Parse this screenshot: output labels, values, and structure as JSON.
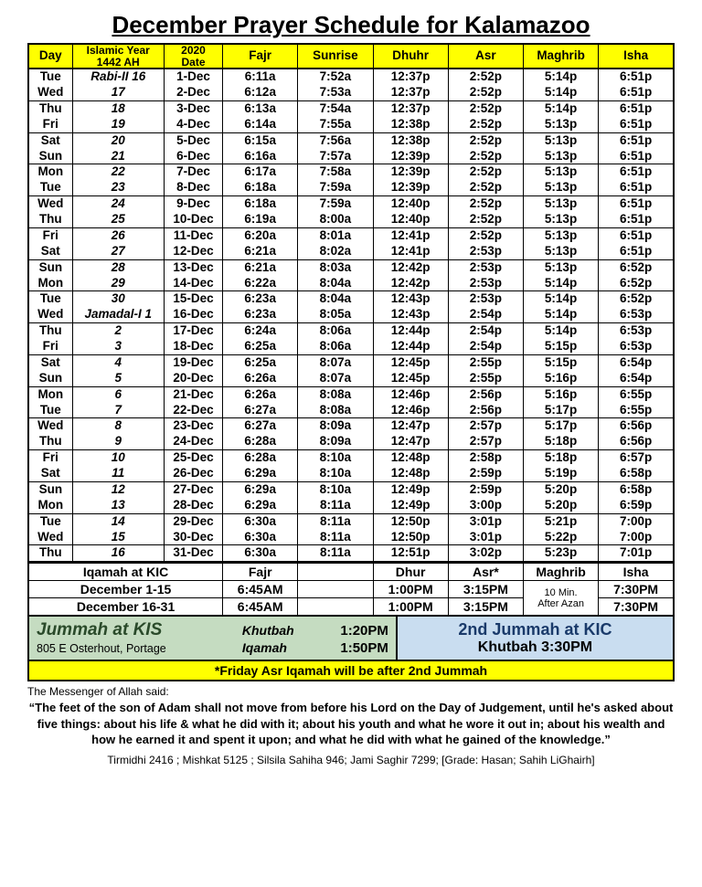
{
  "title": "December Prayer Schedule for Kalamazoo",
  "headers": {
    "day": "Day",
    "iyear_line1": "Islamic Year",
    "iyear_line2": "1442 AH",
    "date_line1": "2020",
    "date_line2": "Date",
    "fajr": "Fajr",
    "sunrise": "Sunrise",
    "dhuhr": "Dhuhr",
    "asr": "Asr",
    "maghrib": "Maghrib",
    "isha": "Isha"
  },
  "rows": [
    {
      "sep": false,
      "day": "Tue",
      "iyear": "Rabi-II  16",
      "date": "1-Dec",
      "fajr": "6:11a",
      "sunrise": "7:52a",
      "dhuhr": "12:37p",
      "asr": "2:52p",
      "maghrib": "5:14p",
      "isha": "6:51p"
    },
    {
      "sep": false,
      "day": "Wed",
      "iyear": "17",
      "date": "2-Dec",
      "fajr": "6:12a",
      "sunrise": "7:53a",
      "dhuhr": "12:37p",
      "asr": "2:52p",
      "maghrib": "5:14p",
      "isha": "6:51p"
    },
    {
      "sep": true,
      "day": "Thu",
      "iyear": "18",
      "date": "3-Dec",
      "fajr": "6:13a",
      "sunrise": "7:54a",
      "dhuhr": "12:37p",
      "asr": "2:52p",
      "maghrib": "5:14p",
      "isha": "6:51p"
    },
    {
      "sep": false,
      "day": "Fri",
      "iyear": "19",
      "date": "4-Dec",
      "fajr": "6:14a",
      "sunrise": "7:55a",
      "dhuhr": "12:38p",
      "asr": "2:52p",
      "maghrib": "5:13p",
      "isha": "6:51p"
    },
    {
      "sep": true,
      "day": "Sat",
      "iyear": "20",
      "date": "5-Dec",
      "fajr": "6:15a",
      "sunrise": "7:56a",
      "dhuhr": "12:38p",
      "asr": "2:52p",
      "maghrib": "5:13p",
      "isha": "6:51p"
    },
    {
      "sep": false,
      "day": "Sun",
      "iyear": "21",
      "date": "6-Dec",
      "fajr": "6:16a",
      "sunrise": "7:57a",
      "dhuhr": "12:39p",
      "asr": "2:52p",
      "maghrib": "5:13p",
      "isha": "6:51p"
    },
    {
      "sep": true,
      "day": "Mon",
      "iyear": "22",
      "date": "7-Dec",
      "fajr": "6:17a",
      "sunrise": "7:58a",
      "dhuhr": "12:39p",
      "asr": "2:52p",
      "maghrib": "5:13p",
      "isha": "6:51p"
    },
    {
      "sep": false,
      "day": "Tue",
      "iyear": "23",
      "date": "8-Dec",
      "fajr": "6:18a",
      "sunrise": "7:59a",
      "dhuhr": "12:39p",
      "asr": "2:52p",
      "maghrib": "5:13p",
      "isha": "6:51p"
    },
    {
      "sep": true,
      "day": "Wed",
      "iyear": "24",
      "date": "9-Dec",
      "fajr": "6:18a",
      "sunrise": "7:59a",
      "dhuhr": "12:40p",
      "asr": "2:52p",
      "maghrib": "5:13p",
      "isha": "6:51p"
    },
    {
      "sep": false,
      "day": "Thu",
      "iyear": "25",
      "date": "10-Dec",
      "fajr": "6:19a",
      "sunrise": "8:00a",
      "dhuhr": "12:40p",
      "asr": "2:52p",
      "maghrib": "5:13p",
      "isha": "6:51p"
    },
    {
      "sep": true,
      "day": "Fri",
      "iyear": "26",
      "date": "11-Dec",
      "fajr": "6:20a",
      "sunrise": "8:01a",
      "dhuhr": "12:41p",
      "asr": "2:52p",
      "maghrib": "5:13p",
      "isha": "6:51p"
    },
    {
      "sep": false,
      "day": "Sat",
      "iyear": "27",
      "date": "12-Dec",
      "fajr": "6:21a",
      "sunrise": "8:02a",
      "dhuhr": "12:41p",
      "asr": "2:53p",
      "maghrib": "5:13p",
      "isha": "6:51p"
    },
    {
      "sep": true,
      "day": "Sun",
      "iyear": "28",
      "date": "13-Dec",
      "fajr": "6:21a",
      "sunrise": "8:03a",
      "dhuhr": "12:42p",
      "asr": "2:53p",
      "maghrib": "5:13p",
      "isha": "6:52p"
    },
    {
      "sep": false,
      "day": "Mon",
      "iyear": "29",
      "date": "14-Dec",
      "fajr": "6:22a",
      "sunrise": "8:04a",
      "dhuhr": "12:42p",
      "asr": "2:53p",
      "maghrib": "5:14p",
      "isha": "6:52p"
    },
    {
      "sep": true,
      "day": "Tue",
      "iyear": "30",
      "date": "15-Dec",
      "fajr": "6:23a",
      "sunrise": "8:04a",
      "dhuhr": "12:43p",
      "asr": "2:53p",
      "maghrib": "5:14p",
      "isha": "6:52p"
    },
    {
      "sep": false,
      "day": "Wed",
      "iyear": "Jamadal-I 1",
      "date": "16-Dec",
      "fajr": "6:23a",
      "sunrise": "8:05a",
      "dhuhr": "12:43p",
      "asr": "2:54p",
      "maghrib": "5:14p",
      "isha": "6:53p"
    },
    {
      "sep": true,
      "day": "Thu",
      "iyear": "2",
      "date": "17-Dec",
      "fajr": "6:24a",
      "sunrise": "8:06a",
      "dhuhr": "12:44p",
      "asr": "2:54p",
      "maghrib": "5:14p",
      "isha": "6:53p"
    },
    {
      "sep": false,
      "day": "Fri",
      "iyear": "3",
      "date": "18-Dec",
      "fajr": "6:25a",
      "sunrise": "8:06a",
      "dhuhr": "12:44p",
      "asr": "2:54p",
      "maghrib": "5:15p",
      "isha": "6:53p"
    },
    {
      "sep": true,
      "day": "Sat",
      "iyear": "4",
      "date": "19-Dec",
      "fajr": "6:25a",
      "sunrise": "8:07a",
      "dhuhr": "12:45p",
      "asr": "2:55p",
      "maghrib": "5:15p",
      "isha": "6:54p"
    },
    {
      "sep": false,
      "day": "Sun",
      "iyear": "5",
      "date": "20-Dec",
      "fajr": "6:26a",
      "sunrise": "8:07a",
      "dhuhr": "12:45p",
      "asr": "2:55p",
      "maghrib": "5:16p",
      "isha": "6:54p"
    },
    {
      "sep": true,
      "day": "Mon",
      "iyear": "6",
      "date": "21-Dec",
      "fajr": "6:26a",
      "sunrise": "8:08a",
      "dhuhr": "12:46p",
      "asr": "2:56p",
      "maghrib": "5:16p",
      "isha": "6:55p"
    },
    {
      "sep": false,
      "day": "Tue",
      "iyear": "7",
      "date": "22-Dec",
      "fajr": "6:27a",
      "sunrise": "8:08a",
      "dhuhr": "12:46p",
      "asr": "2:56p",
      "maghrib": "5:17p",
      "isha": "6:55p"
    },
    {
      "sep": true,
      "day": "Wed",
      "iyear": "8",
      "date": "23-Dec",
      "fajr": "6:27a",
      "sunrise": "8:09a",
      "dhuhr": "12:47p",
      "asr": "2:57p",
      "maghrib": "5:17p",
      "isha": "6:56p"
    },
    {
      "sep": false,
      "day": "Thu",
      "iyear": "9",
      "date": "24-Dec",
      "fajr": "6:28a",
      "sunrise": "8:09a",
      "dhuhr": "12:47p",
      "asr": "2:57p",
      "maghrib": "5:18p",
      "isha": "6:56p"
    },
    {
      "sep": true,
      "day": "Fri",
      "iyear": "10",
      "date": "25-Dec",
      "fajr": "6:28a",
      "sunrise": "8:10a",
      "dhuhr": "12:48p",
      "asr": "2:58p",
      "maghrib": "5:18p",
      "isha": "6:57p"
    },
    {
      "sep": false,
      "day": "Sat",
      "iyear": "11",
      "date": "26-Dec",
      "fajr": "6:29a",
      "sunrise": "8:10a",
      "dhuhr": "12:48p",
      "asr": "2:59p",
      "maghrib": "5:19p",
      "isha": "6:58p"
    },
    {
      "sep": true,
      "day": "Sun",
      "iyear": "12",
      "date": "27-Dec",
      "fajr": "6:29a",
      "sunrise": "8:10a",
      "dhuhr": "12:49p",
      "asr": "2:59p",
      "maghrib": "5:20p",
      "isha": "6:58p"
    },
    {
      "sep": false,
      "day": "Mon",
      "iyear": "13",
      "date": "28-Dec",
      "fajr": "6:29a",
      "sunrise": "8:11a",
      "dhuhr": "12:49p",
      "asr": "3:00p",
      "maghrib": "5:20p",
      "isha": "6:59p"
    },
    {
      "sep": true,
      "day": "Tue",
      "iyear": "14",
      "date": "29-Dec",
      "fajr": "6:30a",
      "sunrise": "8:11a",
      "dhuhr": "12:50p",
      "asr": "3:01p",
      "maghrib": "5:21p",
      "isha": "7:00p"
    },
    {
      "sep": false,
      "day": "Wed",
      "iyear": "15",
      "date": "30-Dec",
      "fajr": "6:30a",
      "sunrise": "8:11a",
      "dhuhr": "12:50p",
      "asr": "3:01p",
      "maghrib": "5:22p",
      "isha": "7:00p"
    },
    {
      "sep": true,
      "day": "Thu",
      "iyear": "16",
      "date": "31-Dec",
      "fajr": "6:30a",
      "sunrise": "8:11a",
      "dhuhr": "12:51p",
      "asr": "3:02p",
      "maghrib": "5:23p",
      "isha": "7:01p"
    }
  ],
  "iqamah": {
    "header": {
      "label": "Iqamah at KIC",
      "fajr": "Fajr",
      "dhur": "Dhur",
      "asr": "Asr*",
      "maghrib": "Maghrib",
      "isha": "Isha"
    },
    "rows": [
      {
        "range": "December    1-15",
        "fajr": "6:45AM",
        "dhur": "1:00PM",
        "asr": "3:15PM",
        "maghrib": "10 Min.",
        "isha": "7:30PM"
      },
      {
        "range": "December  16-31",
        "fajr": "6:45AM",
        "dhur": "1:00PM",
        "asr": "3:15PM",
        "maghrib": "After Azan",
        "isha": "7:30PM"
      }
    ]
  },
  "jummah_left": {
    "title": "Jummah at KIS",
    "addr": "805 E Osterhout, Portage",
    "khutbah_label": "Khutbah",
    "khutbah_time": "1:20PM",
    "iqamah_label": "Iqamah",
    "iqamah_time": "1:50PM"
  },
  "jummah_right": {
    "line1": "2nd Jummah at KIC",
    "line2": "Khutbah 3:30PM"
  },
  "note": "*Friday Asr Iqamah will be after 2nd Jummah",
  "footer": {
    "intro": "The Messenger of Allah said:",
    "hadith": "“The feet of the son of Adam shall not move from before his Lord on the Day of Judgement, until he's asked about five things: about his life & what he did with it; about his youth and what he wore it out in; about his wealth and how he earned it and spent it upon; and what he did with what he gained of the knowledge.”",
    "ref": "Tirmidhi 2416 ; Mishkat 5125 ; Silsila Sahiha 946; Jami Saghir 7299; [Grade: Hasan; Sahih LiGhairh]"
  }
}
